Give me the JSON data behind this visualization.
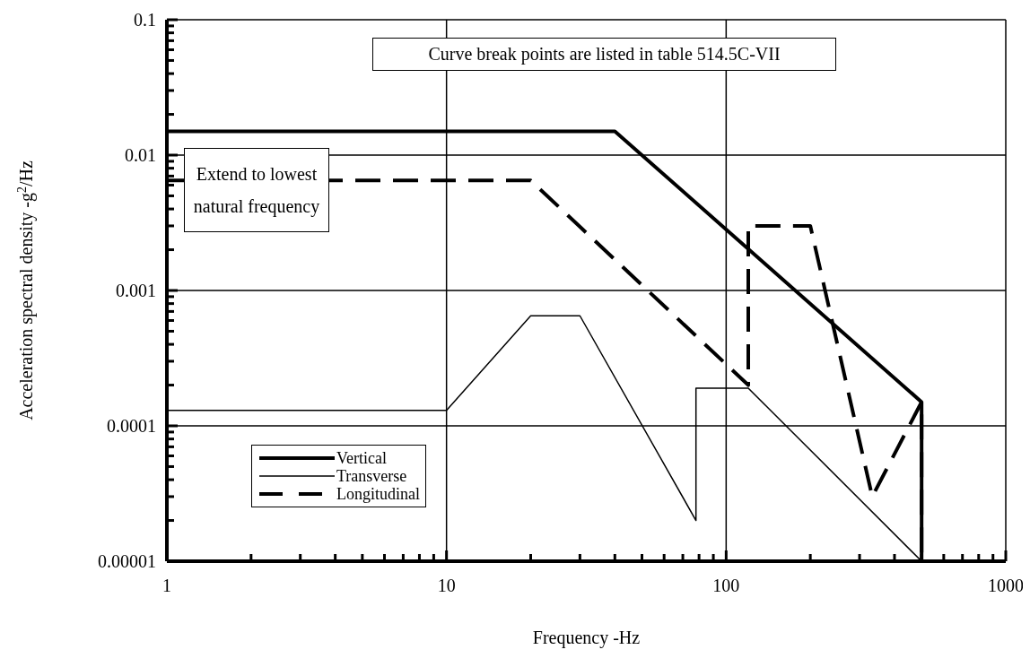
{
  "chart_data": {
    "type": "line",
    "xlabel": "Frequency -Hz",
    "ylabel": "Acceleration spectral density -g$^{2}$/Hz",
    "log": "xy",
    "grid": true,
    "legend": "bottom left",
    "marker": "none",
    "xlim": [
      1,
      1000
    ],
    "ylim": [
      1e-05,
      0.1
    ],
    "xticks": [
      1,
      {
        "value": 2,
        "label": null
      },
      {
        "value": 3,
        "label": null
      },
      {
        "value": 4,
        "label": null
      },
      {
        "value": 5,
        "label": null
      },
      {
        "value": 6,
        "label": null
      },
      {
        "value": 7,
        "label": null
      },
      {
        "value": 8,
        "label": null
      },
      {
        "value": 9,
        "label": null
      },
      10,
      {
        "value": 20,
        "label": null
      },
      {
        "value": 30,
        "label": null
      },
      {
        "value": 40,
        "label": null
      },
      {
        "value": 50,
        "label": null
      },
      {
        "value": 60,
        "label": null
      },
      {
        "value": 70,
        "label": null
      },
      {
        "value": 80,
        "label": null
      },
      {
        "value": 90,
        "label": null
      },
      100,
      {
        "value": 200,
        "label": null
      },
      {
        "value": 300,
        "label": null
      },
      {
        "value": 400,
        "label": null
      },
      {
        "value": 500,
        "label": null
      },
      {
        "value": 600,
        "label": null
      },
      {
        "value": 700,
        "label": null
      },
      {
        "value": 800,
        "label": null
      },
      {
        "value": 900,
        "label": null
      },
      1000
    ],
    "yticks": [
      {
        "value": 1e-05,
        "label": "0.00001"
      },
      {
        "value": 2e-05,
        "label": null
      },
      {
        "value": 3e-05,
        "label": null
      },
      {
        "value": 4e-05,
        "label": null
      },
      {
        "value": 5e-05,
        "label": null
      },
      {
        "value": 6e-05,
        "label": null
      },
      {
        "value": 7e-05,
        "label": null
      },
      {
        "value": 8e-05,
        "label": null
      },
      {
        "value": 9e-05,
        "label": null
      },
      0.0001,
      {
        "value": 0.0002,
        "label": null
      },
      {
        "value": 0.0003,
        "label": null
      },
      {
        "value": 0.0004,
        "label": null
      },
      {
        "value": 0.0005,
        "label": null
      },
      {
        "value": 0.0006,
        "label": null
      },
      {
        "value": 0.0007,
        "label": null
      },
      {
        "value": 0.0008,
        "label": null
      },
      {
        "value": 0.0009,
        "label": null
      },
      0.001,
      {
        "value": 0.002,
        "label": null
      },
      {
        "value": 0.003,
        "label": null
      },
      {
        "value": 0.004,
        "label": null
      },
      {
        "value": 0.005,
        "label": null
      },
      {
        "value": 0.006,
        "label": null
      },
      {
        "value": 0.007,
        "label": null
      },
      {
        "value": 0.008,
        "label": null
      },
      {
        "value": 0.009,
        "label": null
      },
      0.01,
      {
        "value": 0.02,
        "label": null
      },
      {
        "value": 0.03,
        "label": null
      },
      {
        "value": 0.04,
        "label": null
      },
      {
        "value": 0.05,
        "label": null
      },
      {
        "value": 0.06,
        "label": null
      },
      {
        "value": 0.07,
        "label": null
      },
      {
        "value": 0.08,
        "label": null
      },
      {
        "value": 0.09,
        "label": null
      },
      0.1
    ],
    "series": [
      {
        "name": "Vertical",
        "color": "#000000",
        "line_style": "solid",
        "x": [
          1,
          40,
          500,
          500
        ],
        "values": [
          0.015,
          0.015,
          0.00015,
          1e-05
        ]
      },
      {
        "name": "Transverse",
        "color": "#000000",
        "line_style": "solid",
        "x": [
          1,
          10,
          20,
          30,
          78,
          78,
          120,
          500
        ],
        "values": [
          0.00013,
          0.00013,
          0.00065,
          0.00065,
          2e-05,
          0.00019,
          0.00019,
          1e-05
        ]
      },
      {
        "name": "Longitudinal",
        "color": "#000000",
        "line_style": "dashed",
        "x": [
          1,
          20,
          120,
          120,
          200,
          333,
          500,
          500
        ],
        "values": [
          0.0065,
          0.0065,
          0.0002,
          0.003,
          0.003,
          3e-05,
          0.00015,
          1e-05
        ]
      }
    ],
    "annotations": [
      "Curve break points are listed in table 514.5C-VII",
      "Extend to lowest natural frequency"
    ]
  }
}
